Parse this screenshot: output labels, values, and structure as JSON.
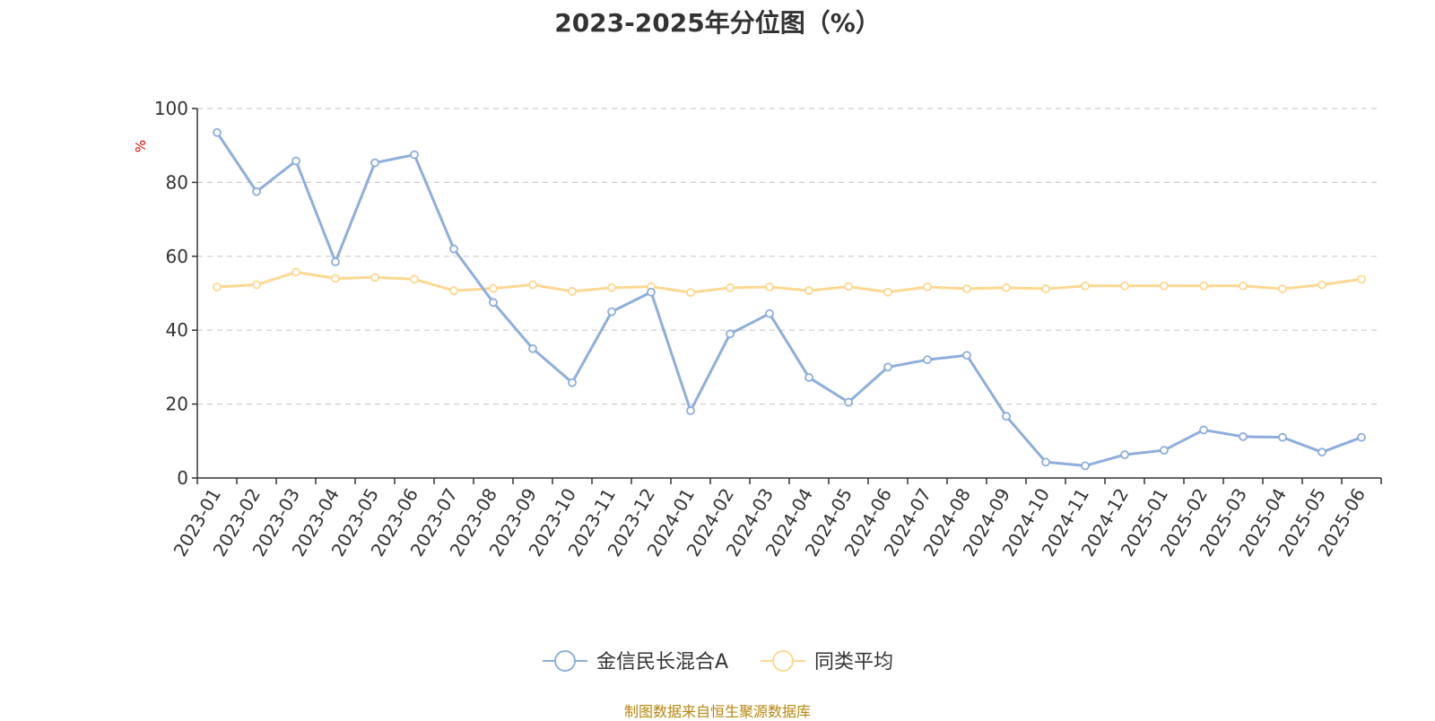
{
  "chart_data": {
    "type": "line",
    "title": "2023-2025年分位图（%）",
    "ylabel": "%",
    "xlabel": "",
    "ylim": [
      0,
      100
    ],
    "yticks": [
      0,
      20,
      40,
      60,
      80,
      100
    ],
    "grid": true,
    "legend_position": "bottom-center",
    "categories": [
      "2023-01",
      "2023-02",
      "2023-03",
      "2023-04",
      "2023-05",
      "2023-06",
      "2023-07",
      "2023-08",
      "2023-09",
      "2023-10",
      "2023-11",
      "2023-12",
      "2024-01",
      "2024-02",
      "2024-03",
      "2024-04",
      "2024-05",
      "2024-06",
      "2024-07",
      "2024-08",
      "2024-09",
      "2024-10",
      "2024-11",
      "2024-12",
      "2025-01",
      "2025-02",
      "2025-03",
      "2025-04",
      "2025-05",
      "2025-06"
    ],
    "series": [
      {
        "name": "金信民长混合A",
        "color": "#8eaedc",
        "values": [
          93.5,
          77.5,
          85.8,
          58.5,
          85.3,
          87.5,
          62,
          47.5,
          35,
          25.8,
          45,
          50.3,
          18.2,
          39,
          44.5,
          27.2,
          20.5,
          30,
          32,
          33.2,
          16.7,
          4.3,
          3.3,
          6.3,
          7.5,
          13,
          11.2,
          11,
          7,
          11
        ]
      },
      {
        "name": "同类平均",
        "color": "#fdd891",
        "values": [
          51.7,
          52.3,
          55.7,
          54,
          54.3,
          53.8,
          50.7,
          51.3,
          52.3,
          50.5,
          51.5,
          51.8,
          50.2,
          51.5,
          51.7,
          50.7,
          51.8,
          50.3,
          51.7,
          51.2,
          51.5,
          51.2,
          52,
          52,
          52,
          52,
          52,
          51.2,
          52.3,
          53.8
        ]
      }
    ]
  },
  "source_note": "制图数据来自恒生聚源数据库"
}
